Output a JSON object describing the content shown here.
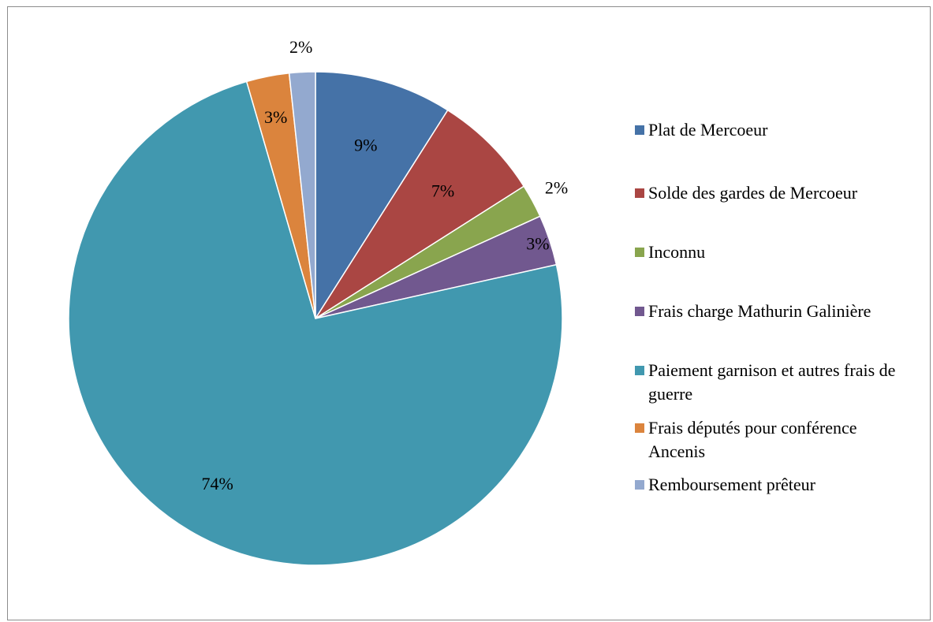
{
  "chart_data": {
    "type": "pie",
    "title": "",
    "slices": [
      {
        "name": "Plat de Mercoeur",
        "value": 9,
        "label": "9%",
        "color": "#4572A7"
      },
      {
        "name": "Solde des gardes de Mercoeur",
        "value": 7,
        "label": "7%",
        "color": "#AA4643"
      },
      {
        "name": "Inconnu",
        "value": 2.2,
        "label": "2%",
        "color": "#89A54E"
      },
      {
        "name": "Frais charge Mathurin Galinière",
        "value": 3.3,
        "label": "3%",
        "color": "#71588F"
      },
      {
        "name": "Paiement garnison et autres frais de guerre",
        "value": 74,
        "label": "74%",
        "color": "#4198AF"
      },
      {
        "name": "Frais députés pour conférence Ancenis",
        "value": 2.8,
        "label": "3%",
        "color": "#DB843D"
      },
      {
        "name": "Remboursement prêteur",
        "value": 1.7,
        "label": "2%",
        "color": "#93A9CF"
      }
    ],
    "legend_position": "right",
    "start_angle": "12 o'clock",
    "direction": "clockwise"
  }
}
